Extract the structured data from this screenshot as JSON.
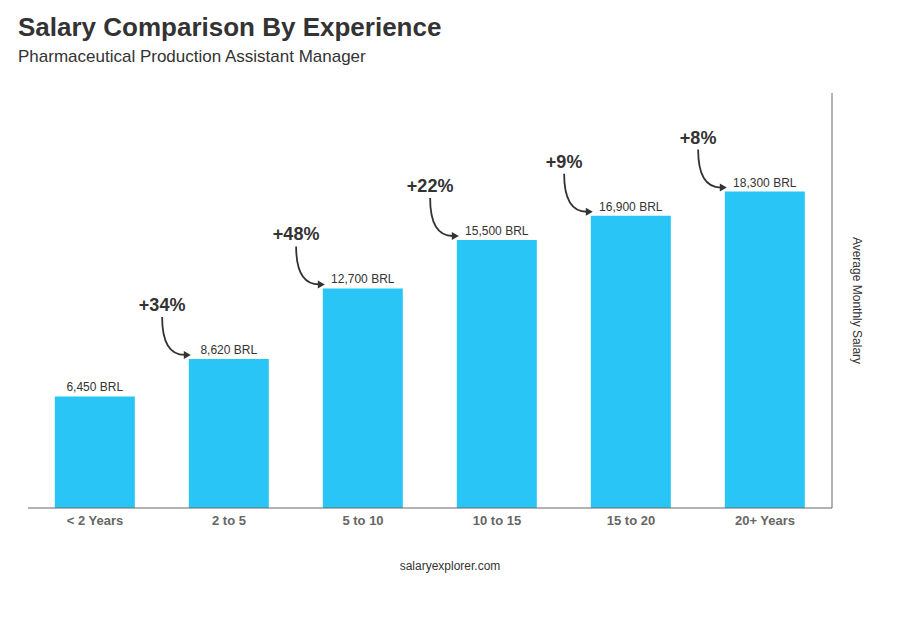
{
  "chart_data": {
    "type": "bar",
    "title": "Salary Comparison By Experience",
    "subtitle": "Pharmaceutical Production Assistant Manager",
    "ylabel": "Average Monthly Salary",
    "source": "salaryexplorer.com",
    "categories": [
      "< 2 Years",
      "2 to 5",
      "5 to 10",
      "10 to 15",
      "15 to 20",
      "20+ Years"
    ],
    "values": [
      6450,
      8620,
      12700,
      15500,
      16900,
      18300
    ],
    "value_labels": [
      "6,450 BRL",
      "8,620 BRL",
      "12,700 BRL",
      "15,500 BRL",
      "16,900 BRL",
      "18,300 BRL"
    ],
    "data_labels": true,
    "color": "#29c5f6",
    "ylim": [
      0,
      24000
    ],
    "tick_labels": "x",
    "grid": false,
    "annotations": [
      "+34%",
      "+48%",
      "+22%",
      "+9%",
      "+8%"
    ]
  }
}
